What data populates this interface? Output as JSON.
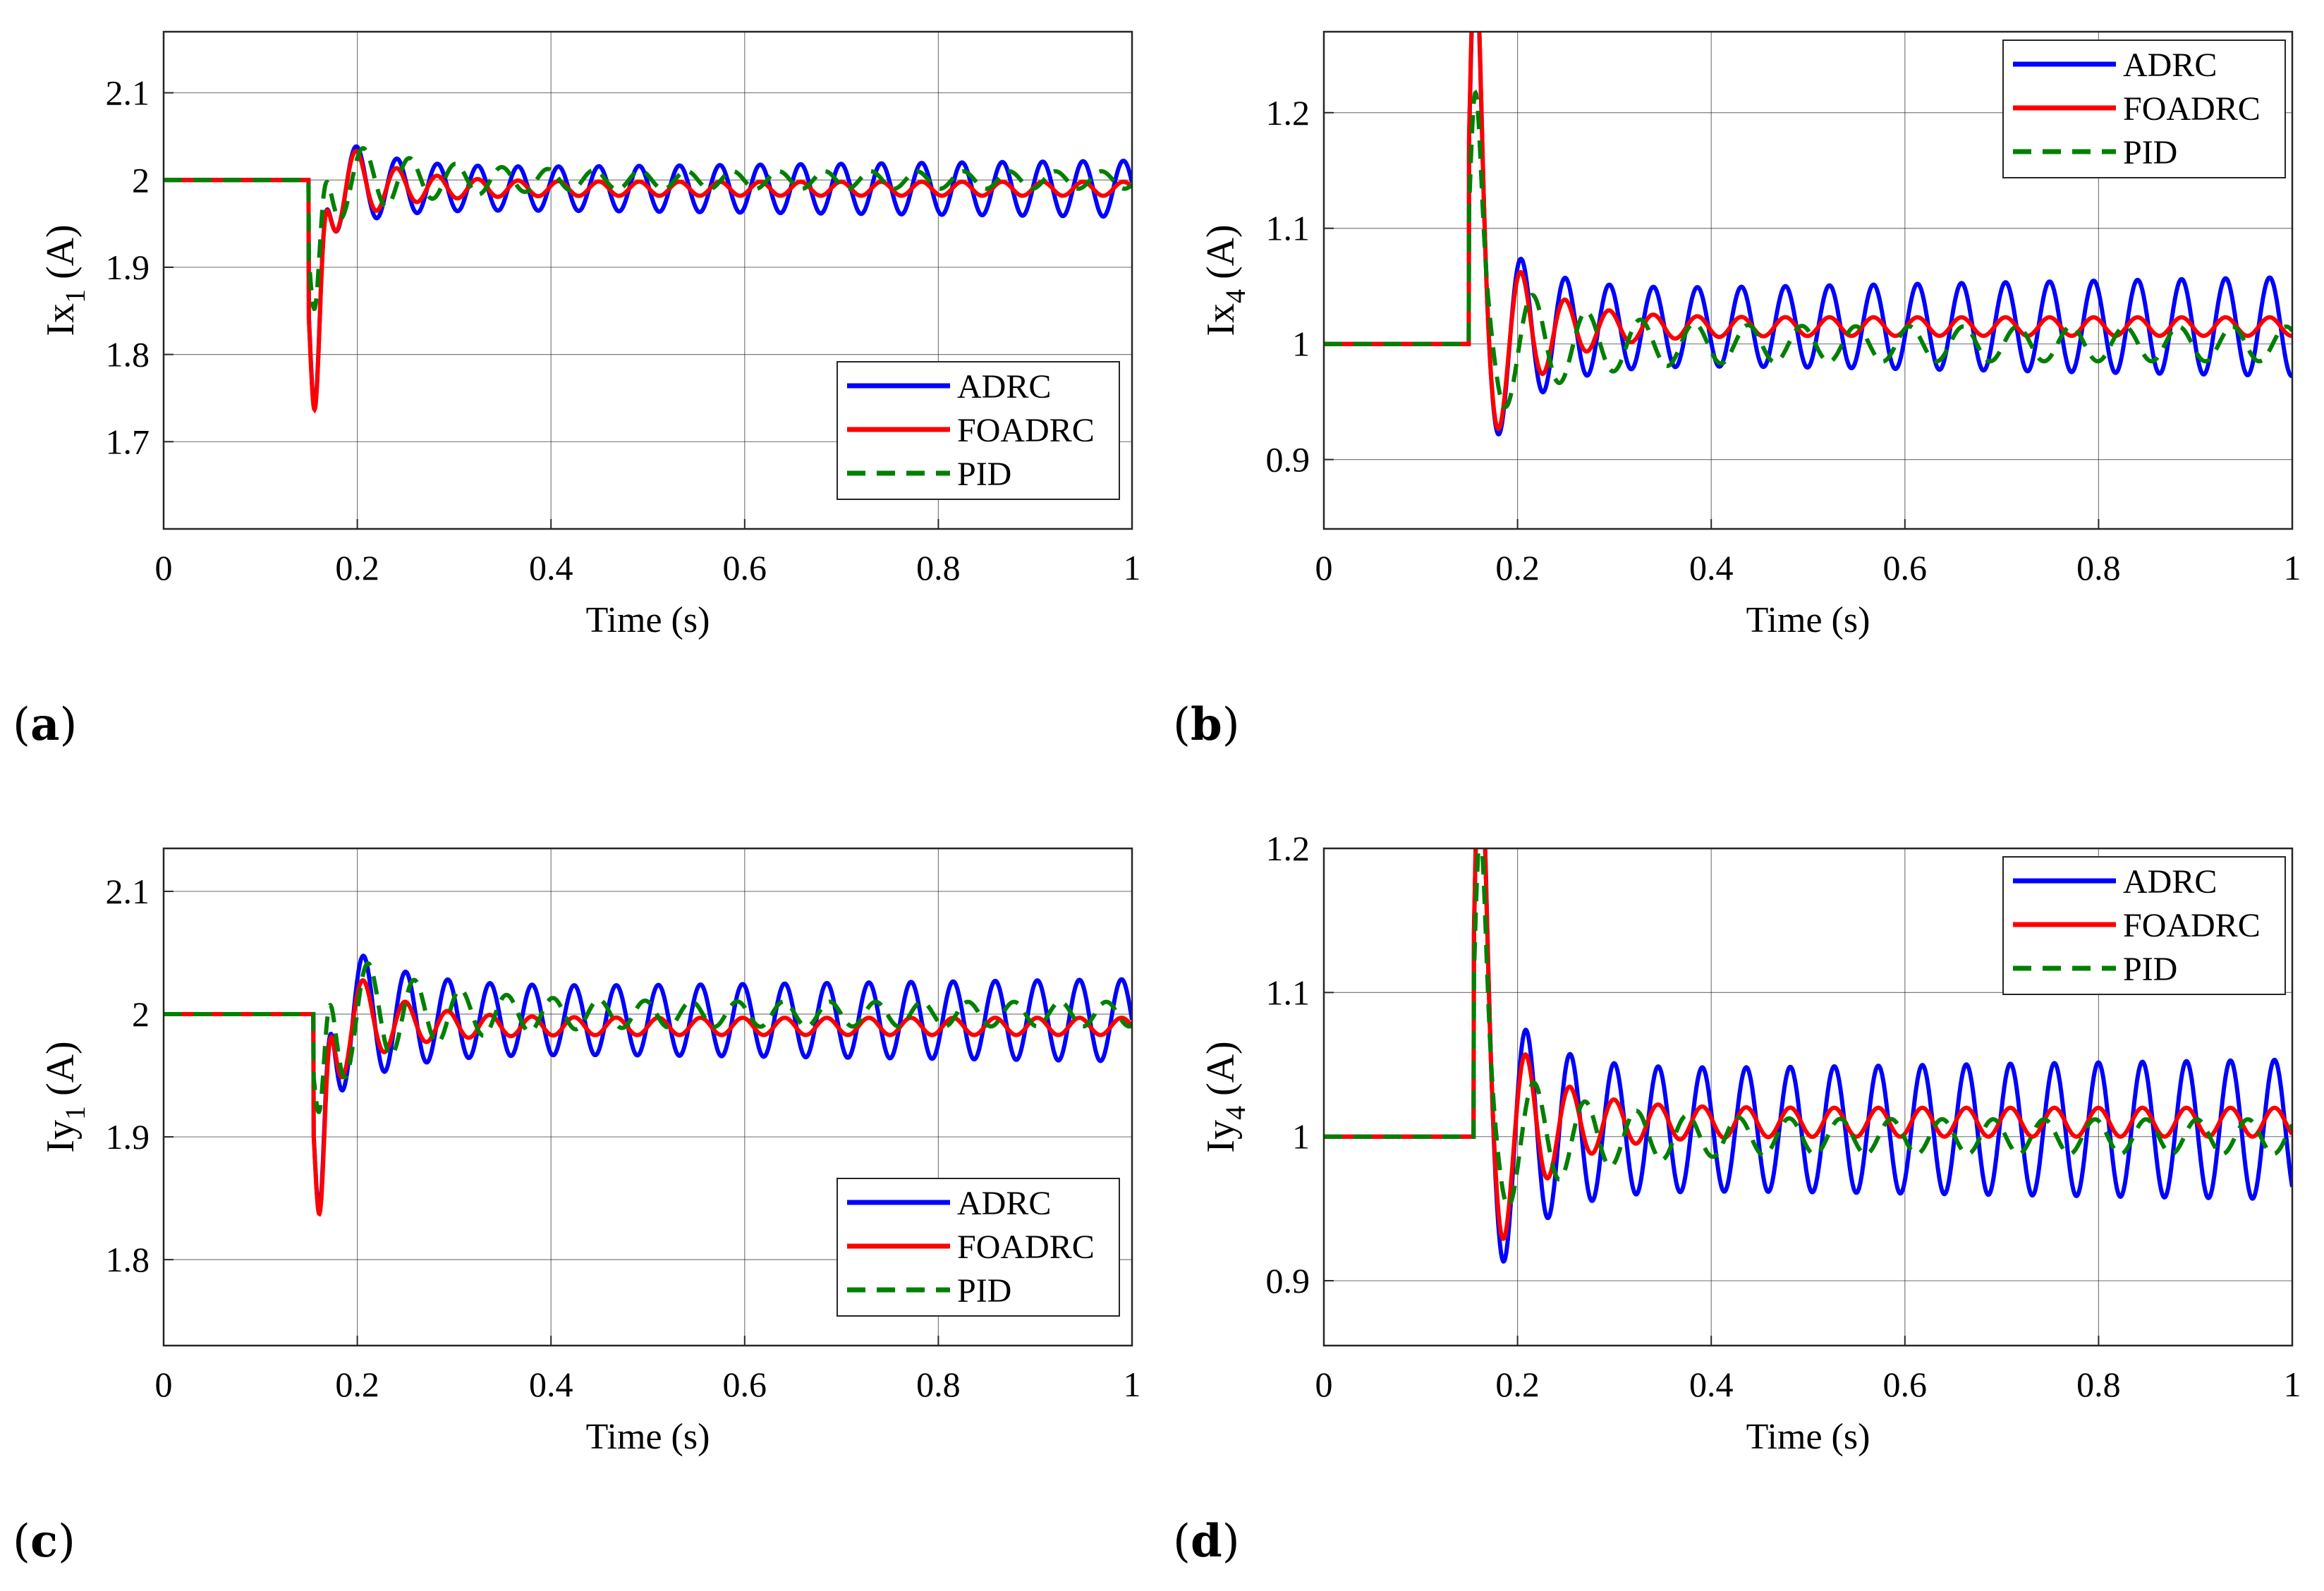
{
  "chart_data": [
    {
      "type": "line",
      "panel_label": "a",
      "title": "",
      "xlabel": "Time (s)",
      "ylabel_main": "Ix",
      "ylabel_sub": "1",
      "ylabel_unit": "(A)",
      "xlim": [
        0,
        1
      ],
      "ylim": [
        1.6,
        2.17
      ],
      "xticks": [
        0,
        0.2,
        0.4,
        0.6,
        0.8,
        1
      ],
      "xtick_labels": [
        "0",
        "0.2",
        "0.4",
        "0.6",
        "0.8",
        "1"
      ],
      "yticks": [
        1.7,
        1.8,
        1.9,
        2,
        2.1
      ],
      "ytick_labels": [
        "1.7",
        "1.8",
        "1.9",
        "2",
        "2.1"
      ],
      "grid": true,
      "legend_position": "bottom-right",
      "step_time": 0.15,
      "series": [
        {
          "name": "ADRC",
          "color": "#0000ff",
          "dash": "solid",
          "base": 2.0,
          "dip": -0.33,
          "settle": 1.99,
          "freq": 24,
          "decay_amp": 0.08,
          "tau": 0.05,
          "steady_amp": 0.022,
          "growth": 0.012
        },
        {
          "name": "FOADRC",
          "color": "#ff0000",
          "dash": "solid",
          "base": 2.0,
          "dip": -0.34,
          "settle": 1.99,
          "freq": 24,
          "decay_amp": 0.09,
          "tau": 0.05,
          "steady_amp": 0.008,
          "growth": 0.0
        },
        {
          "name": "PID",
          "color": "#008000",
          "dash": "dashed",
          "base": 2.0,
          "dip": -0.2,
          "settle": 2.0,
          "freq": 21,
          "decay_amp": 0.06,
          "tau": 0.08,
          "steady_amp": 0.01,
          "growth": 0.0
        }
      ]
    },
    {
      "type": "line",
      "panel_label": "b",
      "title": "",
      "xlabel": "Time (s)",
      "ylabel_main": "Ix",
      "ylabel_sub": "4",
      "ylabel_unit": "(A)",
      "xlim": [
        0,
        1
      ],
      "ylim": [
        0.84,
        1.27
      ],
      "xticks": [
        0,
        0.2,
        0.4,
        0.6,
        0.8,
        1
      ],
      "xtick_labels": [
        "0",
        "0.2",
        "0.4",
        "0.6",
        "0.8",
        "1"
      ],
      "yticks": [
        0.9,
        1,
        1.1,
        1.2
      ],
      "ytick_labels": [
        "0.9",
        "1",
        "1.1",
        "1.2"
      ],
      "grid": true,
      "legend_position": "top-right",
      "step_time": 0.15,
      "series": [
        {
          "name": "ADRC",
          "color": "#0000ff",
          "dash": "solid",
          "base": 1.0,
          "dip": 0.22,
          "settle": 1.015,
          "freq": 22,
          "decay_amp": 0.13,
          "tau": 0.05,
          "steady_amp": 0.03,
          "growth": 0.015
        },
        {
          "name": "FOADRC",
          "color": "#ff0000",
          "dash": "solid",
          "base": 1.0,
          "dip": 0.22,
          "settle": 1.015,
          "freq": 22,
          "decay_amp": 0.14,
          "tau": 0.05,
          "steady_amp": 0.008,
          "growth": 0.0
        },
        {
          "name": "PID",
          "color": "#008000",
          "dash": "dashed",
          "base": 1.0,
          "dip": 0.15,
          "settle": 1.0,
          "freq": 18,
          "decay_amp": 0.08,
          "tau": 0.07,
          "steady_amp": 0.015,
          "growth": 0.0
        }
      ]
    },
    {
      "type": "line",
      "panel_label": "c",
      "title": "",
      "xlabel": "Time (s)",
      "ylabel_main": "Iy",
      "ylabel_sub": "1",
      "ylabel_unit": "(A)",
      "xlim": [
        0,
        1
      ],
      "ylim": [
        1.73,
        2.135
      ],
      "xticks": [
        0,
        0.2,
        0.4,
        0.6,
        0.8,
        1
      ],
      "xtick_labels": [
        "0",
        "0.2",
        "0.4",
        "0.6",
        "0.8",
        "1"
      ],
      "yticks": [
        1.8,
        1.9,
        2,
        2.1
      ],
      "ytick_labels": [
        "1.8",
        "1.9",
        "2",
        "2.1"
      ],
      "grid": true,
      "legend_position": "bottom-right",
      "step_time": 0.155,
      "series": [
        {
          "name": "ADRC",
          "color": "#0000ff",
          "dash": "solid",
          "base": 2.0,
          "dip": -0.23,
          "settle": 1.995,
          "freq": 23,
          "decay_amp": 0.08,
          "tau": 0.06,
          "steady_amp": 0.025,
          "growth": 0.01
        },
        {
          "name": "FOADRC",
          "color": "#ff0000",
          "dash": "solid",
          "base": 2.0,
          "dip": -0.23,
          "settle": 1.99,
          "freq": 23,
          "decay_amp": 0.08,
          "tau": 0.05,
          "steady_amp": 0.007,
          "growth": 0.0
        },
        {
          "name": "PID",
          "color": "#008000",
          "dash": "dashed",
          "base": 2.0,
          "dip": -0.14,
          "settle": 2.0,
          "freq": 21,
          "decay_amp": 0.07,
          "tau": 0.08,
          "steady_amp": 0.01,
          "growth": 0.0
        }
      ]
    },
    {
      "type": "line",
      "panel_label": "d",
      "title": "",
      "xlabel": "Time (s)",
      "ylabel_main": "Iy",
      "ylabel_sub": "4",
      "ylabel_unit": "(A)",
      "xlim": [
        0,
        1
      ],
      "ylim": [
        0.855,
        1.2
      ],
      "xticks": [
        0,
        0.2,
        0.4,
        0.6,
        0.8,
        1
      ],
      "xtick_labels": [
        "0",
        "0.2",
        "0.4",
        "0.6",
        "0.8",
        "1"
      ],
      "yticks": [
        0.9,
        1,
        1.1,
        1.2
      ],
      "ytick_labels": [
        "0.9",
        "1",
        "1.1",
        "1.2"
      ],
      "grid": true,
      "legend_position": "top-right",
      "step_time": 0.155,
      "series": [
        {
          "name": "ADRC",
          "color": "#0000ff",
          "dash": "solid",
          "base": 1.0,
          "dip": 0.16,
          "settle": 1.005,
          "freq": 22,
          "decay_amp": 0.13,
          "tau": 0.05,
          "steady_amp": 0.04,
          "growth": 0.01
        },
        {
          "name": "FOADRC",
          "color": "#ff0000",
          "dash": "solid",
          "base": 1.0,
          "dip": 0.165,
          "settle": 1.01,
          "freq": 22,
          "decay_amp": 0.13,
          "tau": 0.05,
          "steady_amp": 0.01,
          "growth": 0.0
        },
        {
          "name": "PID",
          "color": "#008000",
          "dash": "dashed",
          "base": 1.0,
          "dip": 0.15,
          "settle": 1.0,
          "freq": 19,
          "decay_amp": 0.07,
          "tau": 0.07,
          "steady_amp": 0.012,
          "growth": 0.0
        }
      ]
    }
  ]
}
